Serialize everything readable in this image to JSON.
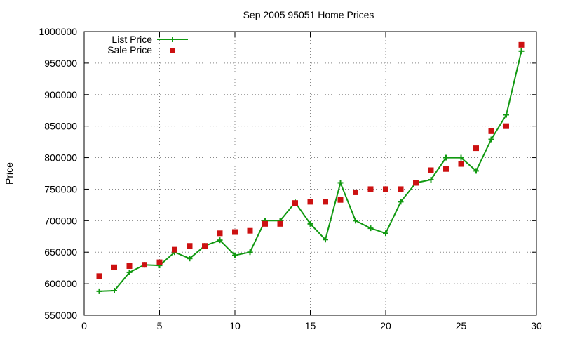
{
  "chart_data": {
    "type": "line",
    "title": "Sep 2005 95051 Home Prices",
    "xlabel": "",
    "ylabel": "Price",
    "xlim": [
      0,
      30
    ],
    "ylim": [
      550000,
      1000000
    ],
    "xticks": [
      0,
      5,
      10,
      15,
      20,
      25,
      30
    ],
    "yticks": [
      550000,
      600000,
      650000,
      700000,
      750000,
      800000,
      850000,
      900000,
      950000,
      1000000
    ],
    "grid": true,
    "legend_position": "top-left",
    "series": [
      {
        "name": "List Price",
        "style": "line-with-plus-markers",
        "color": "#119911",
        "x": [
          1,
          2,
          3,
          4,
          5,
          6,
          7,
          8,
          9,
          10,
          11,
          12,
          13,
          14,
          15,
          16,
          17,
          18,
          19,
          20,
          21,
          22,
          23,
          24,
          25,
          26,
          27,
          28,
          29
        ],
        "y": [
          588000,
          589000,
          618000,
          630000,
          629000,
          650000,
          640000,
          660000,
          669000,
          645000,
          650000,
          700000,
          700000,
          729000,
          695000,
          670000,
          760000,
          700000,
          688000,
          680000,
          730000,
          760000,
          765000,
          800000,
          800000,
          779000,
          829000,
          868000,
          969000
        ]
      },
      {
        "name": "Sale Price",
        "style": "square-markers",
        "color": "#cc1111",
        "x": [
          1,
          2,
          3,
          4,
          5,
          6,
          7,
          8,
          9,
          10,
          11,
          12,
          13,
          14,
          15,
          16,
          17,
          18,
          19,
          20,
          21,
          22,
          23,
          24,
          25,
          26,
          27,
          28,
          29
        ],
        "y": [
          612000,
          626000,
          628000,
          630000,
          634000,
          654000,
          660000,
          660000,
          680000,
          682000,
          684000,
          695000,
          695000,
          728000,
          730000,
          730000,
          733000,
          745000,
          750000,
          750000,
          750000,
          760000,
          780000,
          782000,
          790000,
          815000,
          842000,
          850000,
          979000
        ]
      }
    ]
  }
}
